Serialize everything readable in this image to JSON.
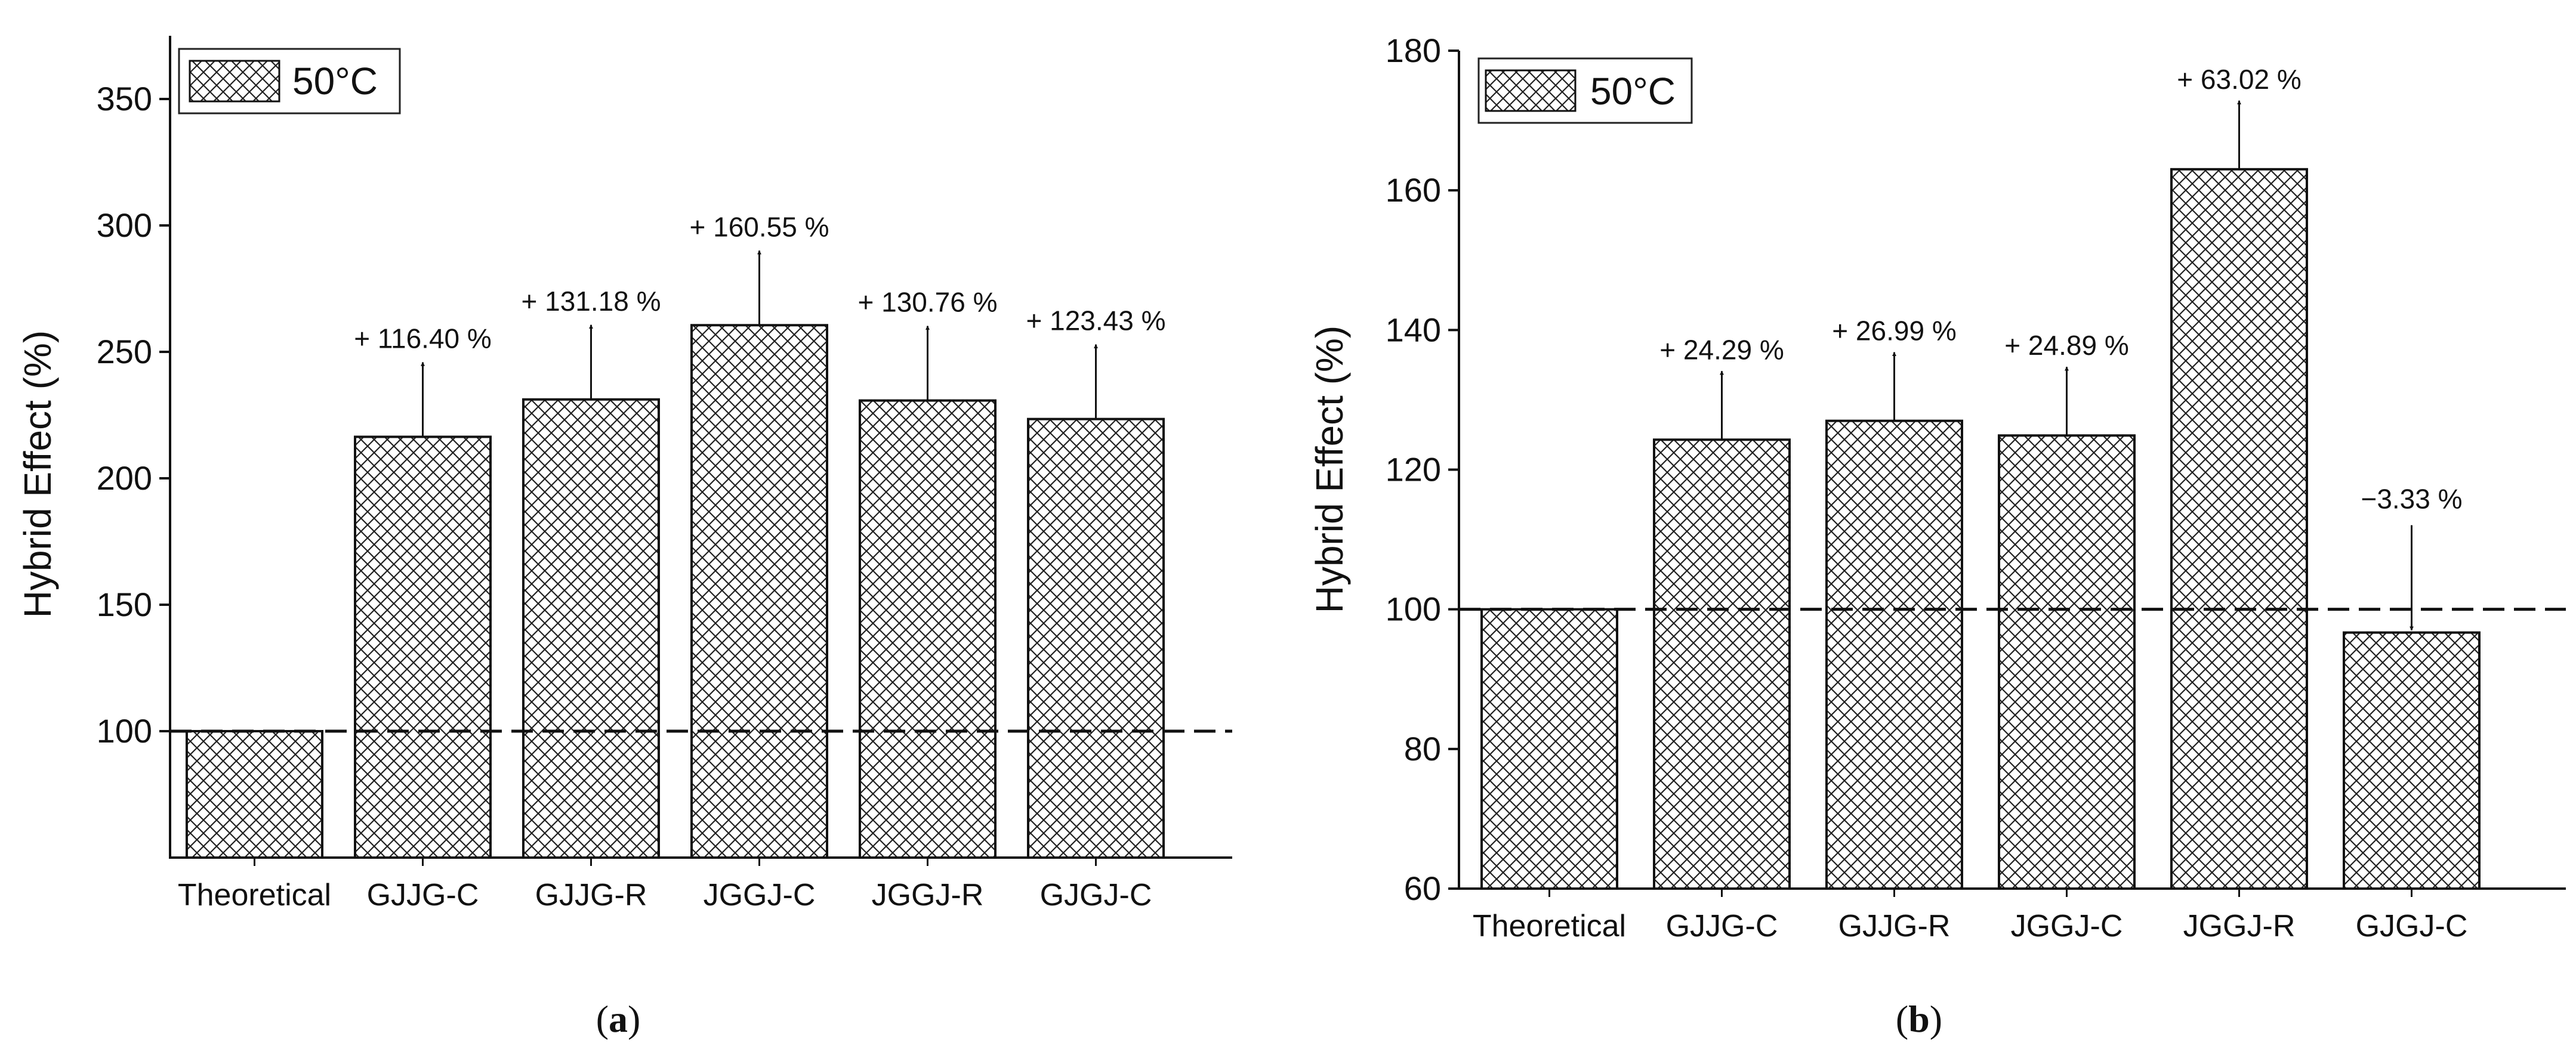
{
  "chart_data": [
    {
      "type": "bar",
      "panel_label": {
        "open": "(",
        "letter": "a",
        "close": ")"
      },
      "ylabel": "Hybrid Effect (%)",
      "xlabel": "",
      "ylim": [
        50,
        375
      ],
      "yticks": [
        100,
        150,
        200,
        250,
        300,
        350
      ],
      "legend": {
        "label": "50°C",
        "placement": "top-left"
      },
      "reference_line": {
        "value": 100,
        "style": "dashed"
      },
      "categories": [
        "Theoretical",
        "GJJG-C",
        "GJJG-R",
        "JGGJ-C",
        "JGGJ-R",
        "GJGJ-C"
      ],
      "values": [
        100,
        216.4,
        231.18,
        260.55,
        230.76,
        223.43
      ],
      "annotations": [
        "",
        "+ 116.40 %",
        "+ 131.18 %",
        "+ 160.55 %",
        "+ 130.76 %",
        "+ 123.43 %"
      ],
      "arrow_direction": [
        "",
        "up",
        "up",
        "up",
        "up",
        "up"
      ]
    },
    {
      "type": "bar",
      "panel_label": {
        "open": "(",
        "letter": "b",
        "close": ")"
      },
      "ylabel": "Hybrid Effect (%)",
      "xlabel": "",
      "ylim": [
        60,
        180
      ],
      "yticks": [
        60,
        80,
        100,
        120,
        140,
        160,
        180
      ],
      "legend": {
        "label": "50°C",
        "placement": "top-left"
      },
      "reference_line": {
        "value": 100,
        "style": "dashed"
      },
      "categories": [
        "Theoretical",
        "GJJG-C",
        "GJJG-R",
        "JGGJ-C",
        "JGGJ-R",
        "GJGJ-C"
      ],
      "values": [
        100,
        124.29,
        126.99,
        124.89,
        163.02,
        96.67
      ],
      "annotations": [
        "",
        "+ 24.29 %",
        "+ 26.99 %",
        "+ 24.89 %",
        "+ 63.02 %",
        "−3.33 %"
      ],
      "arrow_direction": [
        "",
        "up",
        "up",
        "up",
        "up",
        "down"
      ]
    }
  ]
}
